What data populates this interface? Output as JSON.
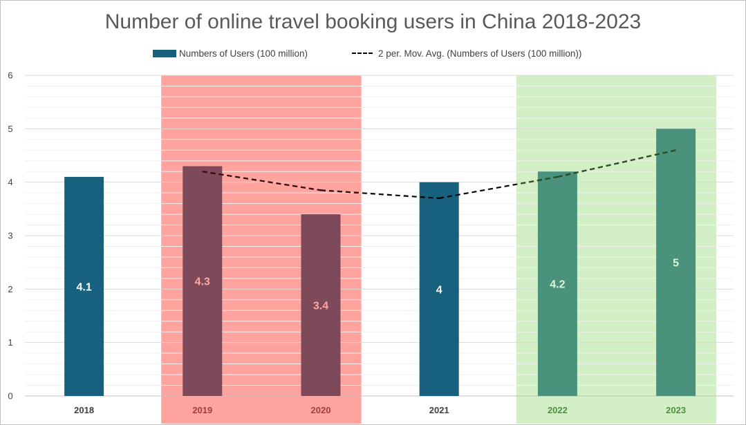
{
  "chart_data": {
    "type": "bar",
    "title": "Number of online travel booking users in China 2018-2023",
    "categories": [
      "2018",
      "2019",
      "2020",
      "2021",
      "2022",
      "2023"
    ],
    "series": [
      {
        "name": "Numbers of Users (100 million)",
        "values": [
          4.1,
          4.3,
          3.4,
          4.0,
          4.2,
          5.0
        ]
      }
    ],
    "data_labels": [
      "4.1",
      "4.3",
      "3.4",
      "4",
      "4.2",
      "5"
    ],
    "trendline": {
      "name": "2 per. Mov. Avg. (Numbers of Users (100 million))",
      "type": "moving_average",
      "period": 2,
      "values": [
        null,
        4.2,
        3.85,
        3.7,
        4.1,
        4.6
      ]
    },
    "ylim": [
      0,
      6
    ],
    "yticks": [
      "0",
      "1",
      "2",
      "3",
      "4",
      "5",
      "6"
    ],
    "xlabel": "",
    "ylabel": "",
    "grid": true,
    "legend": "top",
    "highlight_bands": [
      {
        "from": "2019",
        "to": "2020",
        "color": "#ffa39e"
      },
      {
        "from": "2022",
        "to": "2023",
        "color": "#d3efc6"
      }
    ],
    "colors": {
      "default_bar": "#17607e",
      "red_band_bar": "#7e4a59",
      "green_band_bar": "#4a927c",
      "default_label": "#ffffff",
      "red_band_label": "#ffa6a1",
      "green_band_label": "#dff5d4",
      "default_xtick": "#404040",
      "red_band_xtick": "#a33d3d",
      "green_band_xtick": "#4e8f3e"
    }
  }
}
